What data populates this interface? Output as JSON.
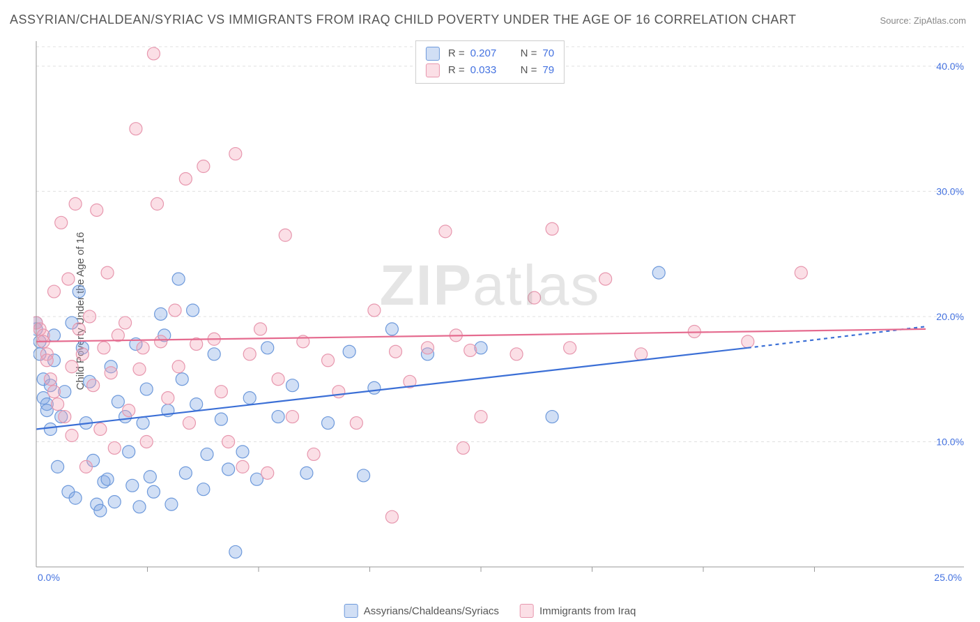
{
  "title": "ASSYRIAN/CHALDEAN/SYRIAC VS IMMIGRANTS FROM IRAQ CHILD POVERTY UNDER THE AGE OF 16 CORRELATION CHART",
  "source": "Source: ZipAtlas.com",
  "y_axis_label": "Child Poverty Under the Age of 16",
  "watermark_bold": "ZIP",
  "watermark_light": "atlas",
  "chart": {
    "type": "scatter",
    "xlim": [
      0,
      25
    ],
    "ylim": [
      0,
      42
    ],
    "x_ticks": [
      0,
      25
    ],
    "x_tick_labels": [
      "0.0%",
      "25.0%"
    ],
    "x_minor_ticks": [
      3.125,
      6.25,
      9.375,
      12.5,
      15.625,
      18.75,
      21.875
    ],
    "y_ticks": [
      10,
      20,
      30,
      40
    ],
    "y_tick_labels": [
      "10.0%",
      "20.0%",
      "30.0%",
      "40.0%"
    ],
    "grid_color": "#e0e0e0",
    "axis_color": "#999999",
    "tick_label_color": "#4472e0",
    "background": "#ffffff",
    "marker_radius": 9,
    "marker_stroke_width": 1.2,
    "trend_line_width": 2.2
  },
  "series": [
    {
      "name": "Assyrians/Chaldeans/Syriacs",
      "label": "Assyrians/Chaldeans/Syriacs",
      "fill": "rgba(122,162,226,0.35)",
      "stroke": "#6d99db",
      "line_color": "#3b6fd6",
      "r": "0.207",
      "n": "70",
      "trend": {
        "x1": 0,
        "y1": 11.0,
        "x2": 20.0,
        "y2": 17.5,
        "extend_x": 25,
        "extend_y": 19.2
      },
      "points": [
        [
          0.0,
          19.5
        ],
        [
          0.0,
          19.0
        ],
        [
          0.1,
          18.0
        ],
        [
          0.1,
          17.0
        ],
        [
          0.2,
          15.0
        ],
        [
          0.2,
          13.5
        ],
        [
          0.3,
          13.0
        ],
        [
          0.3,
          12.5
        ],
        [
          0.4,
          11.0
        ],
        [
          0.4,
          14.5
        ],
        [
          0.5,
          16.5
        ],
        [
          0.5,
          18.5
        ],
        [
          0.6,
          8.0
        ],
        [
          0.7,
          12.0
        ],
        [
          0.8,
          14.0
        ],
        [
          0.9,
          6.0
        ],
        [
          1.0,
          19.5
        ],
        [
          1.1,
          5.5
        ],
        [
          1.2,
          22.0
        ],
        [
          1.3,
          17.5
        ],
        [
          1.4,
          11.5
        ],
        [
          1.5,
          14.8
        ],
        [
          1.6,
          8.5
        ],
        [
          1.7,
          5.0
        ],
        [
          1.8,
          4.5
        ],
        [
          1.9,
          6.8
        ],
        [
          2.0,
          7.0
        ],
        [
          2.1,
          16.0
        ],
        [
          2.2,
          5.2
        ],
        [
          2.3,
          13.2
        ],
        [
          2.5,
          12.0
        ],
        [
          2.6,
          9.2
        ],
        [
          2.7,
          6.5
        ],
        [
          2.8,
          17.8
        ],
        [
          2.9,
          4.8
        ],
        [
          3.0,
          11.5
        ],
        [
          3.1,
          14.2
        ],
        [
          3.2,
          7.2
        ],
        [
          3.3,
          6.0
        ],
        [
          3.5,
          20.2
        ],
        [
          3.6,
          18.5
        ],
        [
          3.7,
          12.5
        ],
        [
          3.8,
          5.0
        ],
        [
          4.0,
          23.0
        ],
        [
          4.1,
          15.0
        ],
        [
          4.2,
          7.5
        ],
        [
          4.4,
          20.5
        ],
        [
          4.5,
          13.0
        ],
        [
          4.7,
          6.2
        ],
        [
          4.8,
          9.0
        ],
        [
          5.0,
          17.0
        ],
        [
          5.2,
          11.8
        ],
        [
          5.4,
          7.8
        ],
        [
          5.6,
          1.2
        ],
        [
          5.8,
          9.2
        ],
        [
          6.0,
          13.5
        ],
        [
          6.2,
          7.0
        ],
        [
          6.5,
          17.5
        ],
        [
          6.8,
          12.0
        ],
        [
          7.2,
          14.5
        ],
        [
          7.6,
          7.5
        ],
        [
          8.2,
          11.5
        ],
        [
          8.8,
          17.2
        ],
        [
          9.2,
          7.3
        ],
        [
          9.5,
          14.3
        ],
        [
          10.0,
          19.0
        ],
        [
          11.0,
          17.0
        ],
        [
          12.5,
          17.5
        ],
        [
          14.5,
          12.0
        ],
        [
          17.5,
          23.5
        ]
      ]
    },
    {
      "name": "Immigrants from Iraq",
      "label": "Immigrants from Iraq",
      "fill": "rgba(244,164,184,0.35)",
      "stroke": "#e797ae",
      "line_color": "#e56b8f",
      "r": "0.033",
      "n": "79",
      "trend": {
        "x1": 0,
        "y1": 18.0,
        "x2": 25,
        "y2": 19.0
      },
      "points": [
        [
          0.0,
          19.5
        ],
        [
          0.1,
          19.0
        ],
        [
          0.2,
          18.5
        ],
        [
          0.2,
          18.0
        ],
        [
          0.3,
          17.0
        ],
        [
          0.3,
          16.5
        ],
        [
          0.4,
          15.0
        ],
        [
          0.5,
          14.0
        ],
        [
          0.5,
          22.0
        ],
        [
          0.6,
          13.0
        ],
        [
          0.7,
          27.5
        ],
        [
          0.8,
          12.0
        ],
        [
          0.9,
          23.0
        ],
        [
          1.0,
          16.0
        ],
        [
          1.0,
          10.5
        ],
        [
          1.1,
          29.0
        ],
        [
          1.2,
          19.0
        ],
        [
          1.3,
          17.0
        ],
        [
          1.4,
          8.0
        ],
        [
          1.5,
          20.0
        ],
        [
          1.6,
          14.5
        ],
        [
          1.7,
          28.5
        ],
        [
          1.8,
          11.0
        ],
        [
          1.9,
          17.5
        ],
        [
          2.0,
          23.5
        ],
        [
          2.1,
          15.5
        ],
        [
          2.2,
          9.5
        ],
        [
          2.3,
          18.5
        ],
        [
          2.5,
          19.5
        ],
        [
          2.6,
          12.5
        ],
        [
          2.8,
          35.0
        ],
        [
          2.9,
          15.8
        ],
        [
          3.0,
          17.5
        ],
        [
          3.1,
          10.0
        ],
        [
          3.3,
          41.0
        ],
        [
          3.4,
          29.0
        ],
        [
          3.5,
          18.0
        ],
        [
          3.7,
          13.5
        ],
        [
          3.9,
          20.5
        ],
        [
          4.0,
          16.0
        ],
        [
          4.2,
          31.0
        ],
        [
          4.3,
          11.5
        ],
        [
          4.5,
          17.8
        ],
        [
          4.7,
          32.0
        ],
        [
          5.0,
          18.2
        ],
        [
          5.2,
          14.0
        ],
        [
          5.4,
          10.0
        ],
        [
          5.6,
          33.0
        ],
        [
          5.8,
          8.0
        ],
        [
          6.0,
          17.0
        ],
        [
          6.3,
          19.0
        ],
        [
          6.5,
          7.5
        ],
        [
          6.8,
          15.0
        ],
        [
          7.0,
          26.5
        ],
        [
          7.2,
          12.0
        ],
        [
          7.5,
          18.0
        ],
        [
          7.8,
          9.0
        ],
        [
          8.2,
          16.5
        ],
        [
          8.5,
          14.0
        ],
        [
          9.0,
          11.5
        ],
        [
          9.5,
          20.5
        ],
        [
          10.0,
          4.0
        ],
        [
          10.1,
          17.2
        ],
        [
          10.5,
          14.8
        ],
        [
          11.0,
          17.5
        ],
        [
          11.5,
          26.8
        ],
        [
          11.8,
          18.5
        ],
        [
          12.0,
          9.5
        ],
        [
          12.2,
          17.3
        ],
        [
          12.5,
          12.0
        ],
        [
          13.5,
          17.0
        ],
        [
          14.0,
          21.5
        ],
        [
          14.5,
          27.0
        ],
        [
          15.0,
          17.5
        ],
        [
          16.0,
          23.0
        ],
        [
          17.0,
          17.0
        ],
        [
          18.5,
          18.8
        ],
        [
          20.0,
          18.0
        ],
        [
          21.5,
          23.5
        ]
      ]
    }
  ],
  "legend_labels": {
    "r": "R =",
    "n": "N ="
  }
}
